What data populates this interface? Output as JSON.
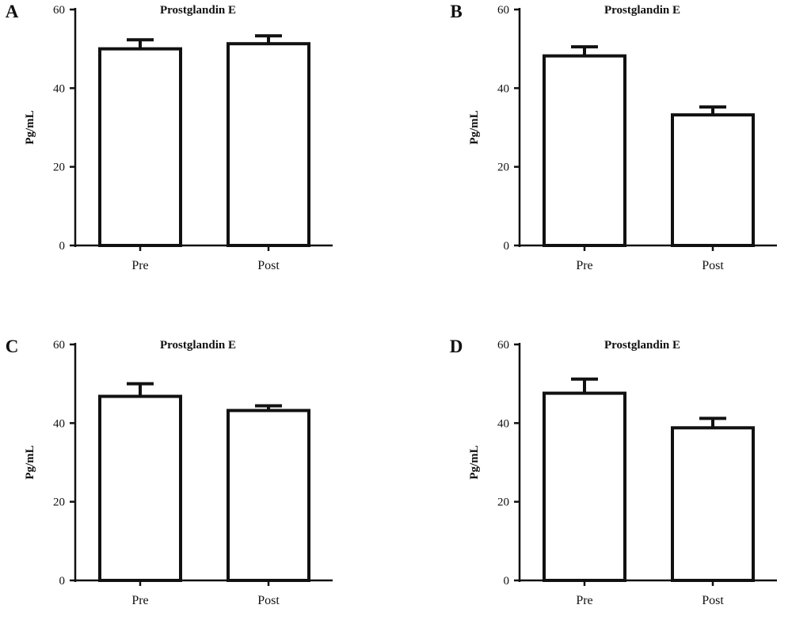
{
  "chart_data": [
    {
      "panel": "A",
      "type": "bar",
      "title": "Prostglandin E",
      "xlabel": "",
      "ylabel": "Pg/mL",
      "ylim": [
        0,
        60
      ],
      "yticks": [
        "0",
        "20",
        "40",
        "60"
      ],
      "categories": [
        "Pre",
        "Post"
      ],
      "values": [
        50,
        51.3
      ],
      "error": [
        2.3,
        2
      ],
      "grid": false
    },
    {
      "panel": "B",
      "type": "bar",
      "title": "Prostglandin E",
      "xlabel": "",
      "ylabel": "Pg/mL",
      "ylim": [
        0,
        60
      ],
      "yticks": [
        "0",
        "20",
        "40",
        "60"
      ],
      "categories": [
        "Pre",
        "Post"
      ],
      "values": [
        48.2,
        33.2
      ],
      "error": [
        2.3,
        2
      ],
      "grid": false
    },
    {
      "panel": "C",
      "type": "bar",
      "title": "Prostglandin E",
      "xlabel": "",
      "ylabel": "Pg/mL",
      "ylim": [
        0,
        60
      ],
      "yticks": [
        "0",
        "20",
        "40",
        "60"
      ],
      "categories": [
        "Pre",
        "Post"
      ],
      "values": [
        46.8,
        43.2
      ],
      "error": [
        3.2,
        1.2
      ],
      "grid": false
    },
    {
      "panel": "D",
      "type": "bar",
      "title": "Prostglandin E",
      "xlabel": "",
      "ylabel": "Pg/mL",
      "ylim": [
        0,
        60
      ],
      "yticks": [
        "0",
        "20",
        "40",
        "60"
      ],
      "categories": [
        "Pre",
        "Post"
      ],
      "values": [
        47.6,
        38.8
      ],
      "error": [
        3.6,
        2.4
      ],
      "grid": false
    }
  ]
}
